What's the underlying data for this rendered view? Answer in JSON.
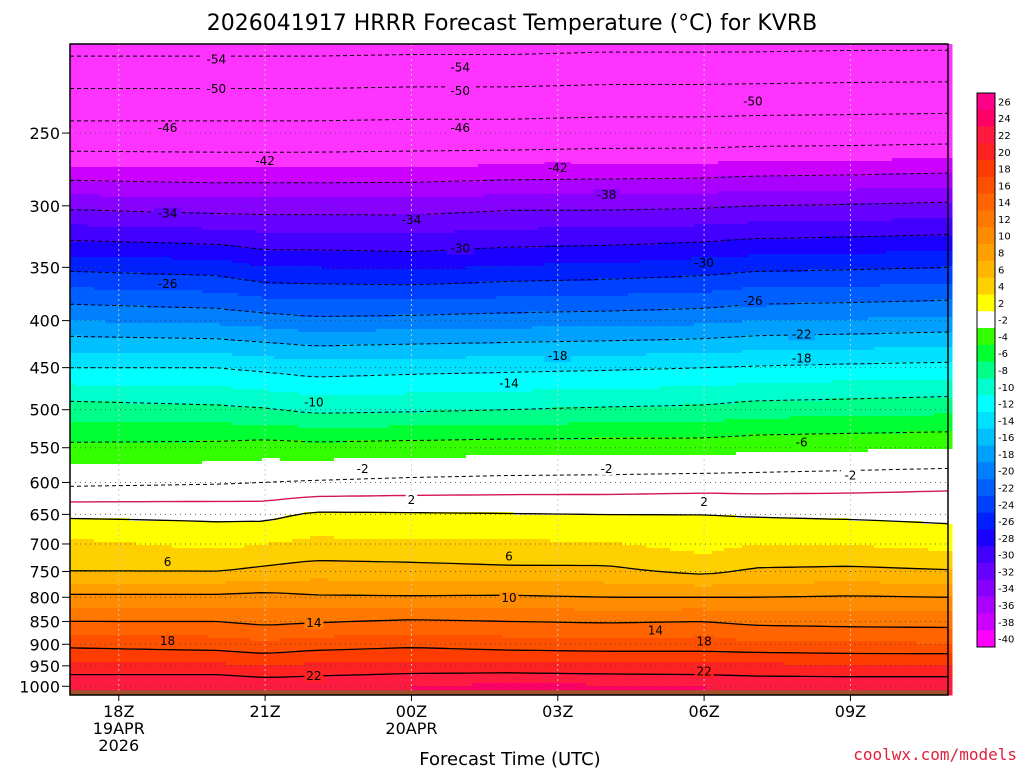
{
  "chart_data": {
    "type": "heatmap",
    "title": "2026041917 HRRR Forecast Temperature (°C) for KVRB",
    "xlabel": "Forecast Time (UTC)",
    "ylabel": "",
    "credit": "coolwx.com/models",
    "x_ticks": [
      {
        "hour": 1,
        "lines": [
          "18Z",
          "19APR",
          "2026"
        ]
      },
      {
        "hour": 4,
        "lines": [
          "21Z"
        ]
      },
      {
        "hour": 7,
        "lines": [
          "00Z",
          "20APR"
        ]
      },
      {
        "hour": 10,
        "lines": [
          "03Z"
        ]
      },
      {
        "hour": 13,
        "lines": [
          "06Z"
        ]
      },
      {
        "hour": 16,
        "lines": [
          "09Z"
        ]
      }
    ],
    "xlim": [
      0,
      18
    ],
    "y_ticks": [
      250,
      300,
      350,
      400,
      450,
      500,
      550,
      600,
      650,
      700,
      750,
      800,
      850,
      900,
      950,
      1000
    ],
    "ylim_hPa": [
      1022,
      200
    ],
    "grid": true,
    "colorbar_labels": [
      "26",
      "24",
      "22",
      "20",
      "18",
      "16",
      "14",
      "12",
      "10",
      "8",
      "6",
      "4",
      "2",
      "-2",
      "-4",
      "-6",
      "-8",
      "-10",
      "-12",
      "-14",
      "-16",
      "-18",
      "-20",
      "-22",
      "-24",
      "-26",
      "-28",
      "-30",
      "-32",
      "-34",
      "-36",
      "-38",
      "-40"
    ],
    "colorbar_colors": [
      "#ff0088",
      "#ff0066",
      "#ff1a40",
      "#ff2222",
      "#ff3c00",
      "#ff5000",
      "#ff6400",
      "#ff7800",
      "#ff8c00",
      "#ffa000",
      "#ffb400",
      "#ffd000",
      "#ffff00",
      "#ffffff",
      "#33ff00",
      "#00ff33",
      "#00ff88",
      "#00ffcc",
      "#00ffff",
      "#00e0ff",
      "#00c0ff",
      "#00a0ff",
      "#0080ff",
      "#0060ff",
      "#0040ff",
      "#0020ff",
      "#1a00ff",
      "#4400ff",
      "#6600ff",
      "#8800ff",
      "#aa00ff",
      "#cc00ff",
      "#ff00ff"
    ],
    "surface_color": "#a0522d",
    "isotherm_colors": {
      "negative": "#000000",
      "positive": "#000000",
      "zero": "#d4145a"
    },
    "temperature_field": {
      "times": [
        0,
        3,
        4,
        5,
        7,
        9,
        11,
        13,
        14,
        16,
        18
      ],
      "pressures": [
        1000,
        950,
        900,
        850,
        800,
        750,
        700,
        650,
        600,
        550,
        500,
        450,
        400,
        350,
        300,
        250,
        200
      ],
      "values": [
        [
          24.0,
          24.0,
          23.5,
          23.5,
          24.0,
          24.5,
          24.3,
          24.0,
          23.5,
          23.5,
          23.5
        ],
        [
          20.5,
          20.5,
          20.0,
          20.5,
          20.8,
          20.7,
          20.5,
          20.5,
          20.5,
          20.3,
          20.3
        ],
        [
          17.5,
          17.0,
          16.5,
          17.0,
          17.5,
          17.0,
          16.8,
          16.8,
          16.5,
          16.3,
          16.2
        ],
        [
          14.0,
          14.0,
          13.5,
          13.8,
          14.3,
          14.0,
          13.8,
          14.0,
          13.5,
          13.3,
          13.2
        ],
        [
          10.5,
          10.5,
          10.8,
          10.3,
          10.2,
          10.3,
          10.0,
          10.0,
          10.0,
          10.2,
          10.0
        ],
        [
          6.0,
          6.0,
          6.5,
          7.0,
          6.8,
          6.5,
          6.5,
          5.5,
          6.3,
          6.5,
          6.2
        ],
        [
          4.5,
          3.5,
          4.0,
          4.5,
          4.4,
          4.3,
          4.2,
          3.2,
          4.0,
          3.9,
          3.3
        ],
        [
          1.6,
          1.5,
          1.4,
          2.3,
          2.2,
          2.1,
          2.0,
          2.0,
          1.8,
          1.6,
          1.4
        ],
        [
          -2.5,
          -2.2,
          -2.0,
          -1.8,
          -1.5,
          -1.3,
          -1.2,
          -1.0,
          -1.0,
          -0.8,
          -0.5
        ],
        [
          -5.5,
          -5.3,
          -5.0,
          -5.2,
          -5.0,
          -4.8,
          -4.8,
          -4.8,
          -4.5,
          -4.3,
          -4.2
        ],
        [
          -9.0,
          -9.5,
          -9.8,
          -10.5,
          -10.3,
          -10.0,
          -9.7,
          -9.5,
          -9.0,
          -8.8,
          -8.5
        ],
        [
          -14.0,
          -14.0,
          -14.5,
          -15.0,
          -14.7,
          -14.5,
          -14.3,
          -14.0,
          -13.8,
          -13.5,
          -13.3
        ],
        [
          -20.0,
          -20.5,
          -21.0,
          -21.5,
          -21.3,
          -21.0,
          -20.8,
          -20.5,
          -20.0,
          -19.8,
          -19.5
        ],
        [
          -26.5,
          -27.0,
          -28.0,
          -28.0,
          -28.3,
          -27.8,
          -27.5,
          -27.0,
          -26.5,
          -26.3,
          -26.0
        ],
        [
          -34.5,
          -35.0,
          -35.0,
          -35.0,
          -35.0,
          -34.5,
          -34.5,
          -34.3,
          -34.0,
          -33.8,
          -33.5
        ],
        [
          -44.5,
          -44.5,
          -44.5,
          -44.5,
          -44.3,
          -44.3,
          -44.0,
          -44.0,
          -43.8,
          -43.7,
          -43.5
        ],
        [
          -55.5,
          -55.5,
          -55.5,
          -55.5,
          -55.3,
          -55.3,
          -55.0,
          -55.0,
          -55.0,
          -54.8,
          -54.8
        ]
      ]
    },
    "contour_labels": [
      {
        "text": "-54",
        "hour": 3.0,
        "p": 208
      },
      {
        "text": "-54",
        "hour": 8.0,
        "p": 212
      },
      {
        "text": "-50",
        "hour": 3.0,
        "p": 224
      },
      {
        "text": "-50",
        "hour": 8.0,
        "p": 225
      },
      {
        "text": "-50",
        "hour": 14.0,
        "p": 231
      },
      {
        "text": "-46",
        "hour": 2.0,
        "p": 247
      },
      {
        "text": "-46",
        "hour": 8.0,
        "p": 247
      },
      {
        "text": "-42",
        "hour": 4.0,
        "p": 268
      },
      {
        "text": "-42",
        "hour": 10.0,
        "p": 273
      },
      {
        "text": "-38",
        "hour": 11.0,
        "p": 292
      },
      {
        "text": "-34",
        "hour": 2.0,
        "p": 306
      },
      {
        "text": "-34",
        "hour": 7.0,
        "p": 311
      },
      {
        "text": "-30",
        "hour": 8.0,
        "p": 334
      },
      {
        "text": "-30",
        "hour": 13.0,
        "p": 346
      },
      {
        "text": "-26",
        "hour": 2.0,
        "p": 365
      },
      {
        "text": "-26",
        "hour": 14.0,
        "p": 381
      },
      {
        "text": "-22",
        "hour": 15.0,
        "p": 414
      },
      {
        "text": "-18",
        "hour": 10.0,
        "p": 437
      },
      {
        "text": "-18",
        "hour": 15.0,
        "p": 440
      },
      {
        "text": "-14",
        "hour": 9.0,
        "p": 468
      },
      {
        "text": "-10",
        "hour": 5.0,
        "p": 491
      },
      {
        "text": "-6",
        "hour": 15.0,
        "p": 543
      },
      {
        "text": "-2",
        "hour": 6.0,
        "p": 580
      },
      {
        "text": "-2",
        "hour": 11.0,
        "p": 580
      },
      {
        "text": "-2",
        "hour": 16.0,
        "p": 590
      },
      {
        "text": "2",
        "hour": 7.0,
        "p": 627
      },
      {
        "text": "2",
        "hour": 13.0,
        "p": 630
      },
      {
        "text": "6",
        "hour": 2.0,
        "p": 732
      },
      {
        "text": "6",
        "hour": 9.0,
        "p": 722
      },
      {
        "text": "10",
        "hour": 9.0,
        "p": 801
      },
      {
        "text": "14",
        "hour": 5.0,
        "p": 853
      },
      {
        "text": "14",
        "hour": 12.0,
        "p": 869
      },
      {
        "text": "18",
        "hour": 2.0,
        "p": 893
      },
      {
        "text": "18",
        "hour": 13.0,
        "p": 894
      },
      {
        "text": "22",
        "hour": 5.0,
        "p": 974
      },
      {
        "text": "22",
        "hour": 13.0,
        "p": 964
      }
    ]
  }
}
